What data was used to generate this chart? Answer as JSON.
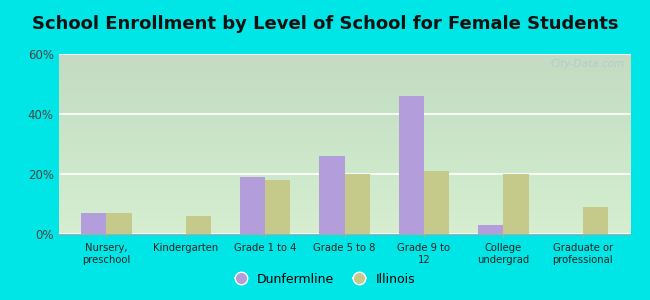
{
  "title": "School Enrollment by Level of School for Female Students",
  "categories": [
    "Nursery,\npreschool",
    "Kindergarten",
    "Grade 1 to 4",
    "Grade 5 to 8",
    "Grade 9 to\n12",
    "College\nundergrad",
    "Graduate or\nprofessional"
  ],
  "dunfermline": [
    7,
    0,
    19,
    26,
    46,
    3,
    0
  ],
  "illinois": [
    7,
    6,
    18,
    20,
    21,
    20,
    9
  ],
  "dunfermline_color": "#b39ddb",
  "illinois_color": "#c5c98a",
  "background_color": "#00e5e5",
  "plot_bg": "#d8f0d8",
  "ylim": [
    0,
    60
  ],
  "yticks": [
    0,
    20,
    40,
    60
  ],
  "ytick_labels": [
    "0%",
    "20%",
    "40%",
    "60%"
  ],
  "legend_dunfermline": "Dunfermline",
  "legend_illinois": "Illinois",
  "watermark": "City-Data.com",
  "title_fontsize": 13,
  "bar_width": 0.32
}
